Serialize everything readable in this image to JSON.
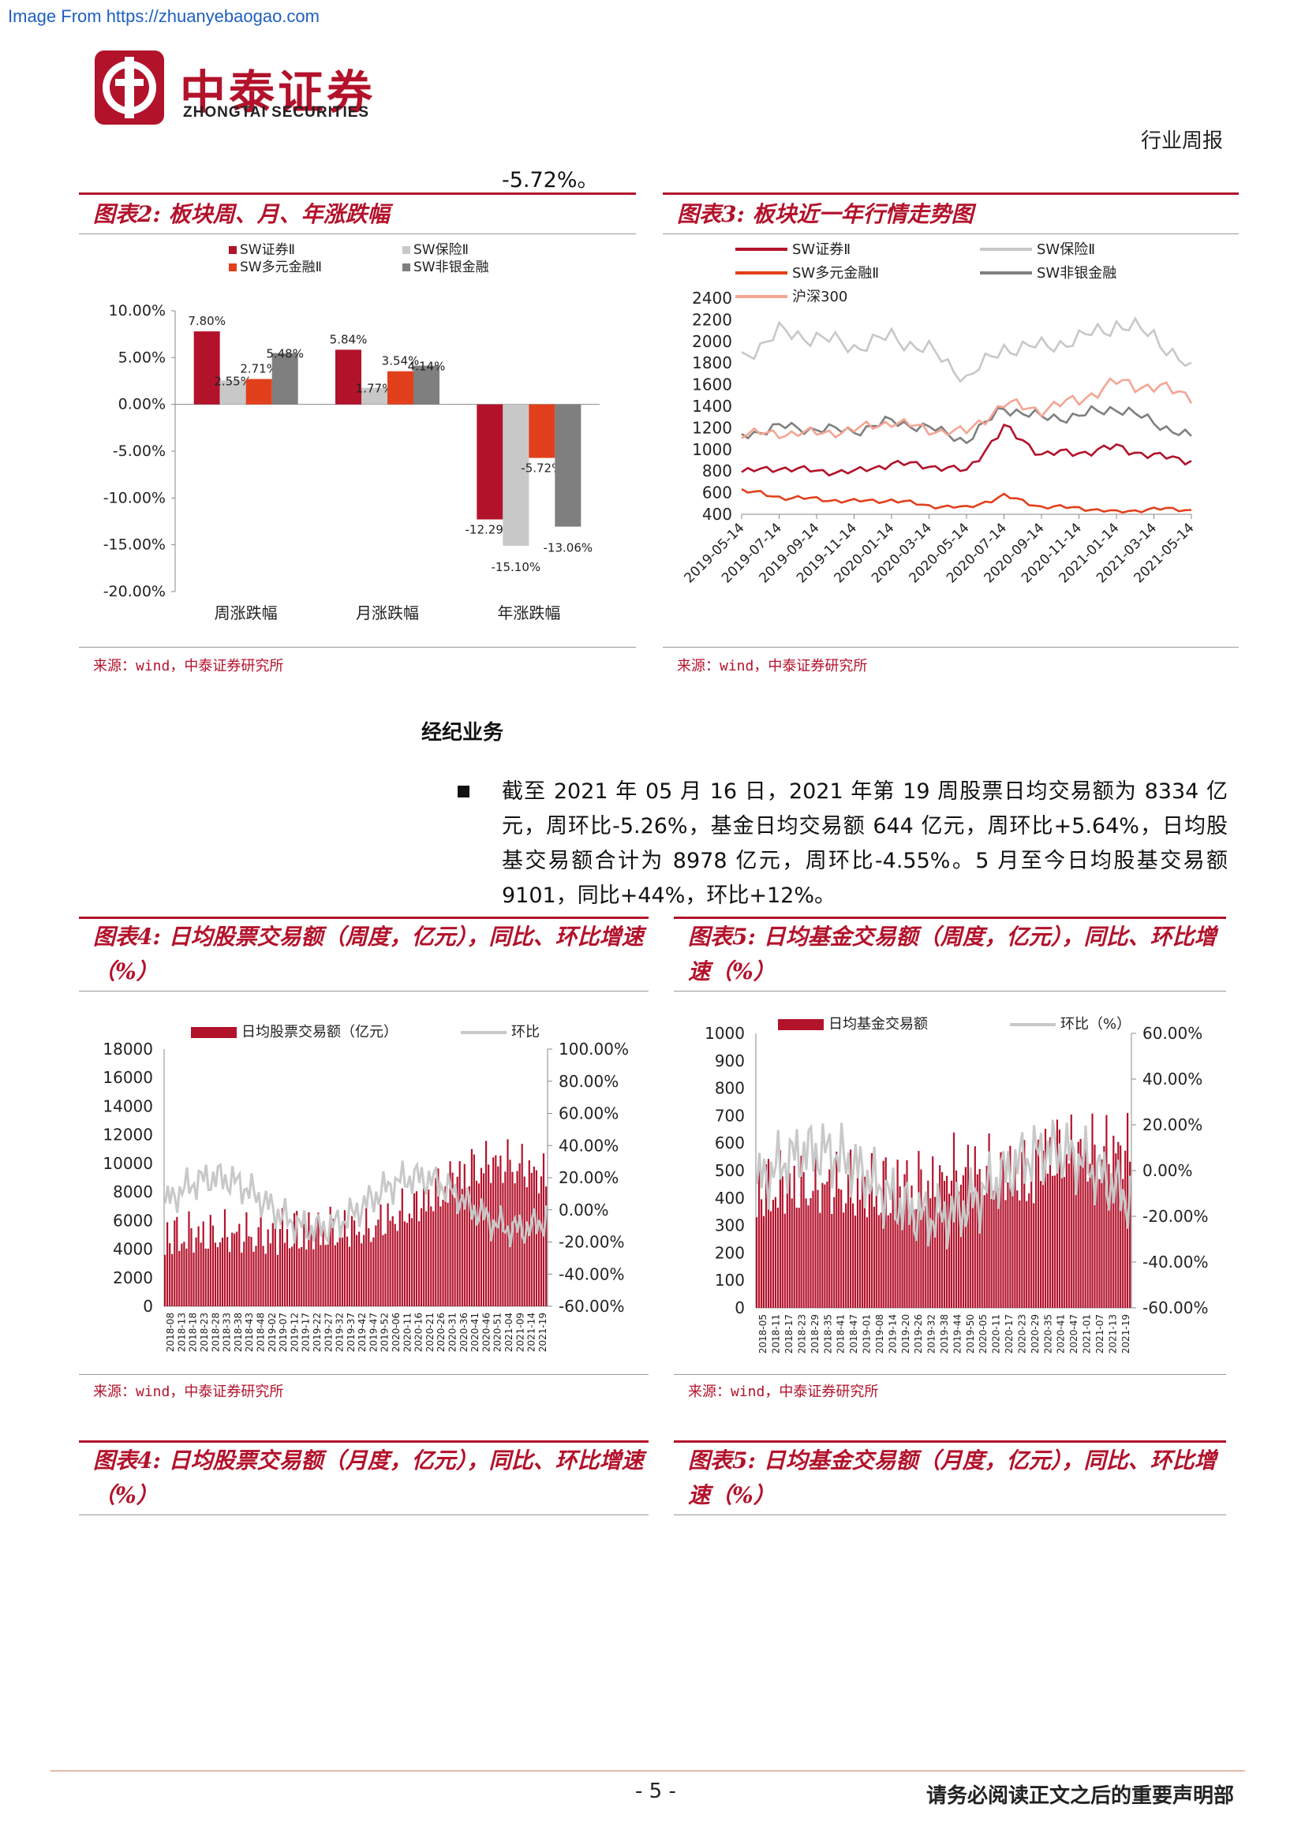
{
  "watermark": "Image From https://zhuanyebaogao.com",
  "logo": {
    "cn": "中泰证券",
    "en": "ZHONGTAI SECURITIES"
  },
  "header": {
    "doc_type": "行业周报"
  },
  "prev_fragment": "-5.72%。",
  "fig2": {
    "title": "图表2: 板块周、月、年涨跌幅",
    "source": "来源：wind，中泰证券研究所"
  },
  "fig3": {
    "title": "图表3: 板块近一年行情走势图",
    "source": "来源：wind，中泰证券研究所"
  },
  "section_heading": "经纪业务",
  "paragraph": "截至 2021 年 05 月 16 日，2021 年第 19 周股票日均交易额为 8334 亿元，周环比-5.26%，基金日均交易额 644 亿元，周环比+5.64%，日均股基交易额合计为 8978 亿元，周环比-4.55%。5 月至今日均股基交易额 9101，同比+44%，环比+12%。",
  "fig4": {
    "title": "图表4: 日均股票交易额（周度，亿元），同比、环比增速（%）",
    "source": "来源：wind，中泰证券研究所"
  },
  "fig5": {
    "title": "图表5: 日均基金交易额（周度，亿元），同比、环比增速（%）",
    "source": "来源：wind，中泰证券研究所"
  },
  "fig4b": {
    "title": "图表4: 日均股票交易额（月度，亿元），同比、环比增速（%）"
  },
  "fig5b": {
    "title": "图表5: 日均基金交易额（月度，亿元），同比、环比增速（%）"
  },
  "footer": {
    "page": "- 5 -",
    "disclaimer": "请务必阅读正文之后的重要声明部"
  },
  "colors": {
    "accent": "#b3122b",
    "securities": "#b3122b",
    "insurance": "#c8c8c8",
    "diversified": "#e2401c",
    "nonbank": "#7f7f7f",
    "hs300": "#f4a593"
  },
  "chart_data": [
    {
      "type": "bar",
      "categories": [
        "周涨跌幅",
        "月涨跌幅",
        "年涨跌幅"
      ],
      "series": [
        {
          "name": "SW证券Ⅱ",
          "values": [
            7.8,
            5.84,
            -12.29
          ]
        },
        {
          "name": "SW保险Ⅱ",
          "values": [
            2.55,
            1.77,
            -15.1
          ]
        },
        {
          "name": "SW多元金融Ⅱ",
          "values": [
            2.71,
            3.54,
            -5.72
          ]
        },
        {
          "name": "SW非银金融",
          "values": [
            5.48,
            4.14,
            -13.06
          ]
        }
      ],
      "yticks": [
        "10.00%",
        "5.00%",
        "0.00%",
        "-5.00%",
        "-10.00%",
        "-15.00%",
        "-20.00%"
      ],
      "ylim": [
        -20,
        10
      ],
      "legend": "top"
    },
    {
      "type": "line",
      "x": [
        "2019-05-14",
        "2019-07-14",
        "2019-09-14",
        "2019-11-14",
        "2020-01-14",
        "2020-03-14",
        "2020-05-14",
        "2020-07-14",
        "2020-09-14",
        "2020-11-14",
        "2021-01-14",
        "2021-03-14",
        "2021-05-14"
      ],
      "series": [
        {
          "name": "SW证券Ⅱ",
          "values": [
            790,
            830,
            800,
            790,
            870,
            850,
            800,
            1200,
            960,
            970,
            1020,
            940,
            900
          ]
        },
        {
          "name": "SW保险Ⅱ",
          "values": [
            1850,
            2080,
            2040,
            1950,
            2040,
            1920,
            1660,
            1940,
            1950,
            2020,
            2160,
            2060,
            1720
          ]
        },
        {
          "name": "SW多元金融Ⅱ",
          "values": [
            620,
            560,
            540,
            520,
            530,
            480,
            460,
            570,
            470,
            460,
            420,
            450,
            440
          ]
        },
        {
          "name": "SW非银金融",
          "values": [
            1130,
            1210,
            1190,
            1170,
            1260,
            1200,
            1080,
            1390,
            1290,
            1310,
            1390,
            1250,
            1110
          ]
        },
        {
          "name": "沪深300",
          "values": [
            1140,
            1150,
            1150,
            1180,
            1260,
            1180,
            1160,
            1420,
            1370,
            1460,
            1620,
            1580,
            1500
          ]
        }
      ],
      "yticks": [
        "2400",
        "2200",
        "2000",
        "1800",
        "1600",
        "1400",
        "1200",
        "1000",
        "800",
        "600",
        "400"
      ],
      "ylim": [
        400,
        2400
      ],
      "legend": "top"
    },
    {
      "type": "bar",
      "series": [
        {
          "name": "日均股票交易额（亿元）"
        },
        {
          "name": "环比"
        }
      ],
      "x_labels": [
        "2018-08",
        "2018-13",
        "2018-18",
        "2018-23",
        "2018-28",
        "2018-33",
        "2018-38",
        "2018-43",
        "2018-48",
        "2019-02",
        "2019-07",
        "2019-12",
        "2019-17",
        "2019-22",
        "2019-27",
        "2019-32",
        "2019-37",
        "2019-42",
        "2019-47",
        "2019-52",
        "2020-06",
        "2020-11",
        "2020-16",
        "2020-21",
        "2020-26",
        "2020-31",
        "2020-36",
        "2020-41",
        "2020-46",
        "2020-51",
        "2021-04",
        "2021-09",
        "2021-14",
        "2021-19"
      ],
      "yticks_left": [
        "18000",
        "16000",
        "14000",
        "12000",
        "10000",
        "8000",
        "6000",
        "4000",
        "2000",
        "0"
      ],
      "yticks_right": [
        "100.00%",
        "80.00%",
        "60.00%",
        "40.00%",
        "20.00%",
        "0.00%",
        "-20.00%",
        "-40.00%",
        "-60.00%"
      ],
      "ylim_left": [
        0,
        18000
      ],
      "ylim_right": [
        -60,
        100
      ]
    },
    {
      "type": "bar",
      "series": [
        {
          "name": "日均基金交易额"
        },
        {
          "name": "环比（%）"
        }
      ],
      "x_labels": [
        "2018-05",
        "2018-11",
        "2018-17",
        "2018-23",
        "2018-29",
        "2018-35",
        "2018-41",
        "2018-47",
        "2019-01",
        "2019-08",
        "2019-14",
        "2019-20",
        "2019-26",
        "2019-32",
        "2019-38",
        "2019-44",
        "2019-50",
        "2020-05",
        "2020-11",
        "2020-17",
        "2020-23",
        "2020-29",
        "2020-35",
        "2020-41",
        "2020-47",
        "2021-01",
        "2021-07",
        "2021-13",
        "2021-19"
      ],
      "yticks_left": [
        "1000",
        "900",
        "800",
        "700",
        "600",
        "500",
        "400",
        "300",
        "200",
        "100",
        "0"
      ],
      "yticks_right": [
        "60.00%",
        "40.00%",
        "20.00%",
        "0.00%",
        "-20.00%",
        "-40.00%",
        "-60.00%"
      ],
      "ylim_left": [
        0,
        1000
      ],
      "ylim_right": [
        -60,
        60
      ]
    }
  ]
}
